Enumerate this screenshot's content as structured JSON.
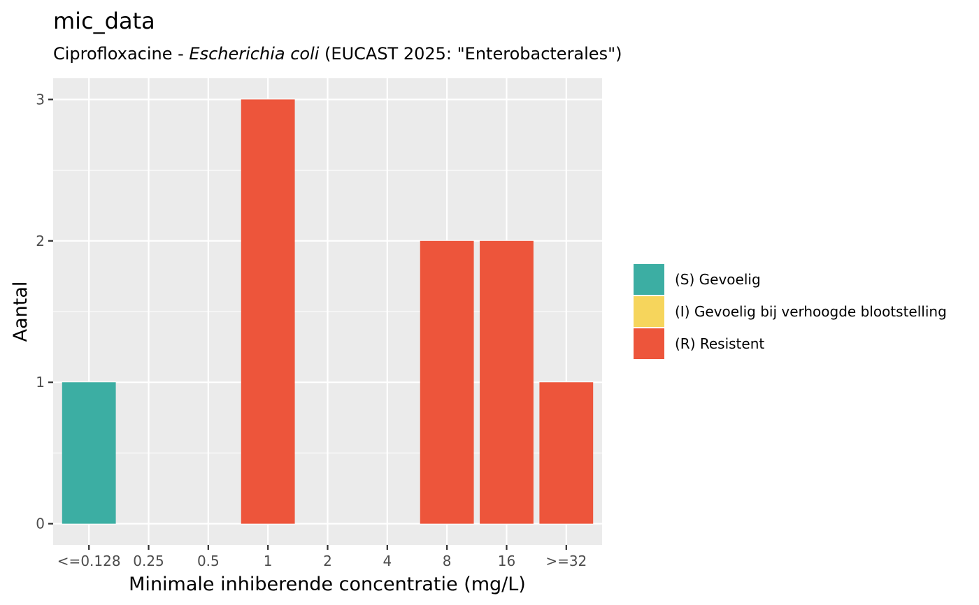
{
  "chart_data": {
    "type": "bar",
    "title": "mic_data",
    "subtitle": {
      "prefix": "Ciprofloxacine - ",
      "organism": "Escherichia coli",
      "suffix": " (EUCAST 2025: \"Enterobacterales\")"
    },
    "xlabel": "Minimale inhiberende concentratie (mg/L)",
    "ylabel": "Aantal",
    "categories": [
      "<=0.128",
      "0.25",
      "0.5",
      "1",
      "2",
      "4",
      "8",
      "16",
      ">=32"
    ],
    "values": [
      1,
      0,
      0,
      3,
      0,
      0,
      2,
      2,
      1
    ],
    "interpretation": [
      "S",
      null,
      null,
      "R",
      null,
      null,
      "R",
      "R",
      "R"
    ],
    "ylim": [
      -0.15,
      3.15
    ],
    "yticks": [
      0,
      1,
      2,
      3
    ],
    "grid": true,
    "legend_position": "right",
    "legend": [
      {
        "key": "S",
        "label": "(S) Gevoelig",
        "color": "#3CAEA3"
      },
      {
        "key": "I",
        "label": "(I) Gevoelig bij verhoogde blootstelling",
        "color": "#F6D55C"
      },
      {
        "key": "R",
        "label": "(R) Resistent",
        "color": "#ED553B"
      }
    ],
    "colors": {
      "panel_background": "#EBEBEB",
      "grid": "#FFFFFF",
      "tick_text": "#4D4D4D"
    }
  }
}
